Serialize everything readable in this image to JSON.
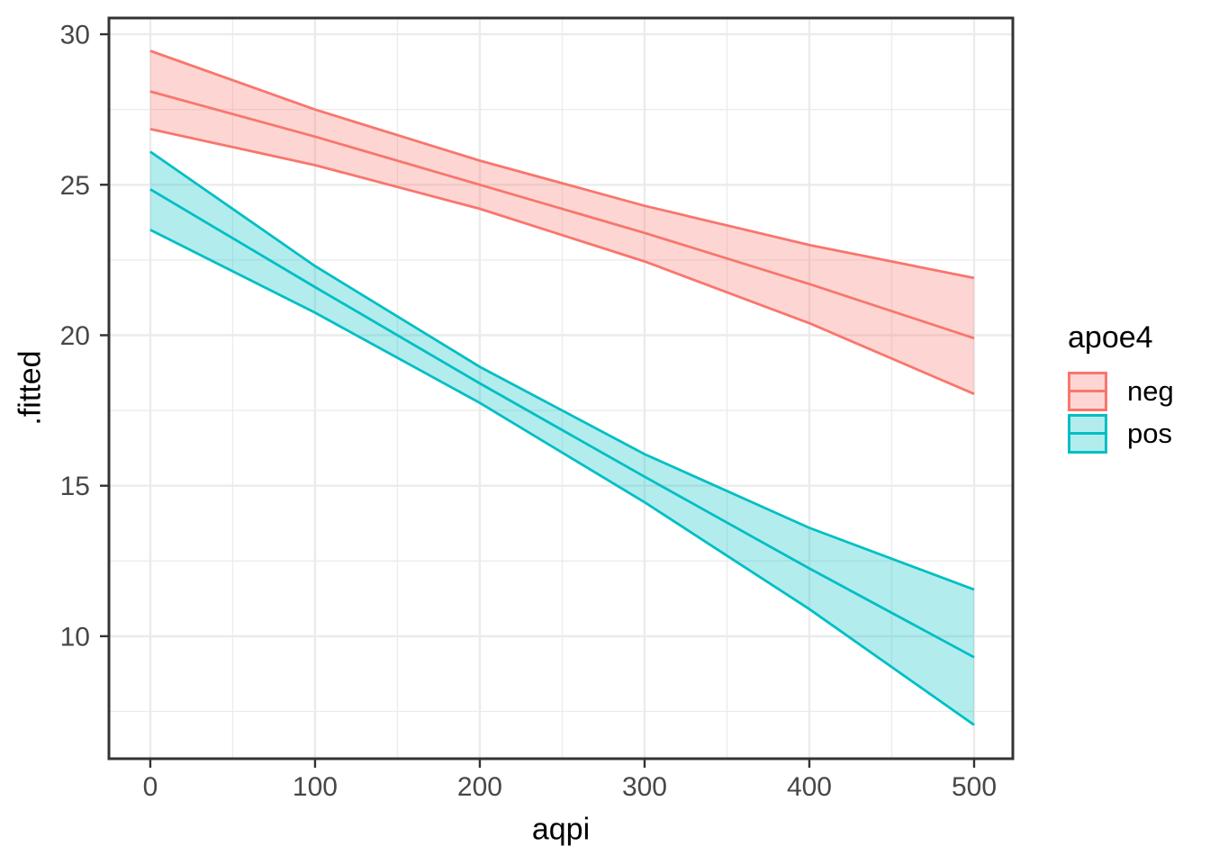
{
  "figure": {
    "background": "#ffffff"
  },
  "legend": {
    "title": "apoe4",
    "entries": [
      {
        "label": "neg",
        "color": "#F8766D"
      },
      {
        "label": "pos",
        "color": "#00BFC4"
      }
    ]
  },
  "chart_data": {
    "type": "line",
    "title": "",
    "xlabel": "aqpi",
    "ylabel": ".fitted",
    "x": [
      0,
      100,
      200,
      300,
      400,
      500
    ],
    "series": [
      {
        "name": "neg",
        "color": "#F8766D",
        "fitted": [
          28.1,
          26.6,
          25.0,
          23.4,
          21.7,
          19.9
        ],
        "ci_upper": [
          29.45,
          27.5,
          25.8,
          24.3,
          23.0,
          21.9
        ],
        "ci_lower": [
          26.85,
          25.65,
          24.2,
          22.45,
          20.4,
          18.05
        ]
      },
      {
        "name": "pos",
        "color": "#00BFC4",
        "fitted": [
          24.85,
          21.6,
          18.4,
          15.3,
          12.25,
          9.3
        ],
        "ci_upper": [
          26.1,
          22.3,
          18.95,
          16.05,
          13.6,
          11.55
        ],
        "ci_lower": [
          23.5,
          20.75,
          17.75,
          14.45,
          10.9,
          7.05
        ]
      }
    ],
    "x_ticks": [
      0,
      100,
      200,
      300,
      400,
      500
    ],
    "x_tick_labels": [
      "0",
      "100",
      "200",
      "300",
      "400",
      "500"
    ],
    "y_ticks": [
      10,
      15,
      20,
      25,
      30
    ],
    "y_tick_labels": [
      "10",
      "15",
      "20",
      "25",
      "30"
    ],
    "x_minor_ticks": [
      50,
      150,
      250,
      350,
      450
    ],
    "y_minor_ticks": [
      7.5,
      12.5,
      17.5,
      22.5,
      27.5
    ],
    "xlim": [
      -25.1,
      523.5
    ],
    "ylim": [
      5.93,
      30.54
    ],
    "ribbon_alpha": 0.3,
    "grid": true,
    "grid_color": "#EBEBEB",
    "panel_background": "#FFFFFF",
    "panel_border_color": "#333333",
    "tick_mark_color": "#333333",
    "tick_text_color": "#474747",
    "legend_position": "right"
  }
}
